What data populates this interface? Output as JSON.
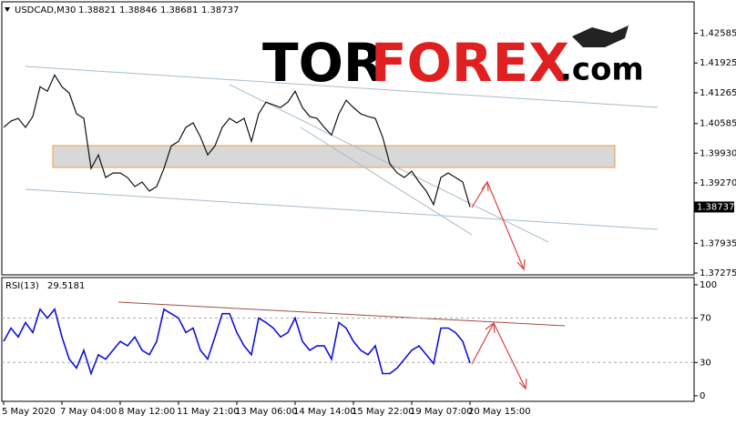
{
  "logo": {
    "part1": "TOR",
    "part2": "FOREX",
    "part3": ".com"
  },
  "chart_data": [
    {
      "type": "line",
      "title": "USDCAD,M30",
      "ohlc": [
        1.38821,
        1.38846,
        1.38681,
        1.38737
      ],
      "color": "#111111",
      "values": [
        1.405,
        1.4064,
        1.407,
        1.405,
        1.4074,
        1.414,
        1.413,
        1.4166,
        1.414,
        1.4126,
        1.408,
        1.407,
        1.3959,
        1.3989,
        1.3939,
        1.3949,
        1.3949,
        1.3939,
        1.3919,
        1.3929,
        1.3909,
        1.3919,
        1.3959,
        1.4009,
        1.4019,
        1.405,
        1.406,
        1.4029,
        1.3989,
        1.4009,
        1.405,
        1.407,
        1.406,
        1.407,
        1.4019,
        1.408,
        1.4106,
        1.41,
        1.4094,
        1.4106,
        1.413,
        1.4094,
        1.4074,
        1.407,
        1.405,
        1.4033,
        1.408,
        1.411,
        1.4094,
        1.408,
        1.4074,
        1.407,
        1.4029,
        1.3969,
        1.3949,
        1.3939,
        1.3953,
        1.3929,
        1.3909,
        1.3879,
        1.3939,
        1.3949,
        1.3939,
        1.3929,
        1.38737
      ],
      "ylim": [
        1.37235,
        1.4328
      ],
      "yticks": [
        1.42585,
        1.41925,
        1.41265,
        1.40585,
        {
          "value": 1.3993,
          "label": "1.39930"
        },
        {
          "value": 1.3927,
          "label": "1.39270"
        },
        1.37935,
        1.37275
      ]
    },
    {
      "type": "line",
      "title": "RSI(13)",
      "color": "#1010e0",
      "categories": [
        "5 May 2020",
        null,
        null,
        null,
        null,
        null,
        null,
        null,
        "7 May 04:00",
        null,
        null,
        null,
        null,
        null,
        null,
        null,
        "8 May 12:00",
        null,
        null,
        null,
        null,
        null,
        null,
        null,
        "11 May 21:00",
        null,
        null,
        null,
        null,
        null,
        null,
        null,
        "13 May 06:00",
        null,
        null,
        null,
        null,
        null,
        null,
        null,
        "14 May 14:00",
        null,
        null,
        null,
        null,
        null,
        null,
        null,
        "15 May 22:00",
        null,
        null,
        null,
        null,
        null,
        null,
        null,
        "19 May 07:00",
        null,
        null,
        null,
        null,
        null,
        null,
        null,
        "20 May 15:00"
      ],
      "values": [
        49,
        61,
        53,
        66,
        57,
        78,
        70,
        78,
        53,
        33,
        25,
        41,
        20,
        37,
        33,
        41,
        49,
        45,
        53,
        41,
        37,
        49,
        78,
        74,
        70,
        57,
        61,
        41,
        33,
        53,
        74,
        74,
        57,
        45,
        37,
        70,
        66,
        61,
        53,
        57,
        70,
        49,
        41,
        45,
        45,
        33,
        66,
        61,
        49,
        41,
        37,
        45,
        20,
        20,
        25,
        33,
        41,
        45,
        37,
        29,
        61,
        61,
        57,
        49,
        29.5181
      ],
      "ylim": [
        -5,
        106.5
      ],
      "yticks": [
        100,
        70,
        30,
        0
      ],
      "levels": [
        70,
        30
      ]
    }
  ]
}
